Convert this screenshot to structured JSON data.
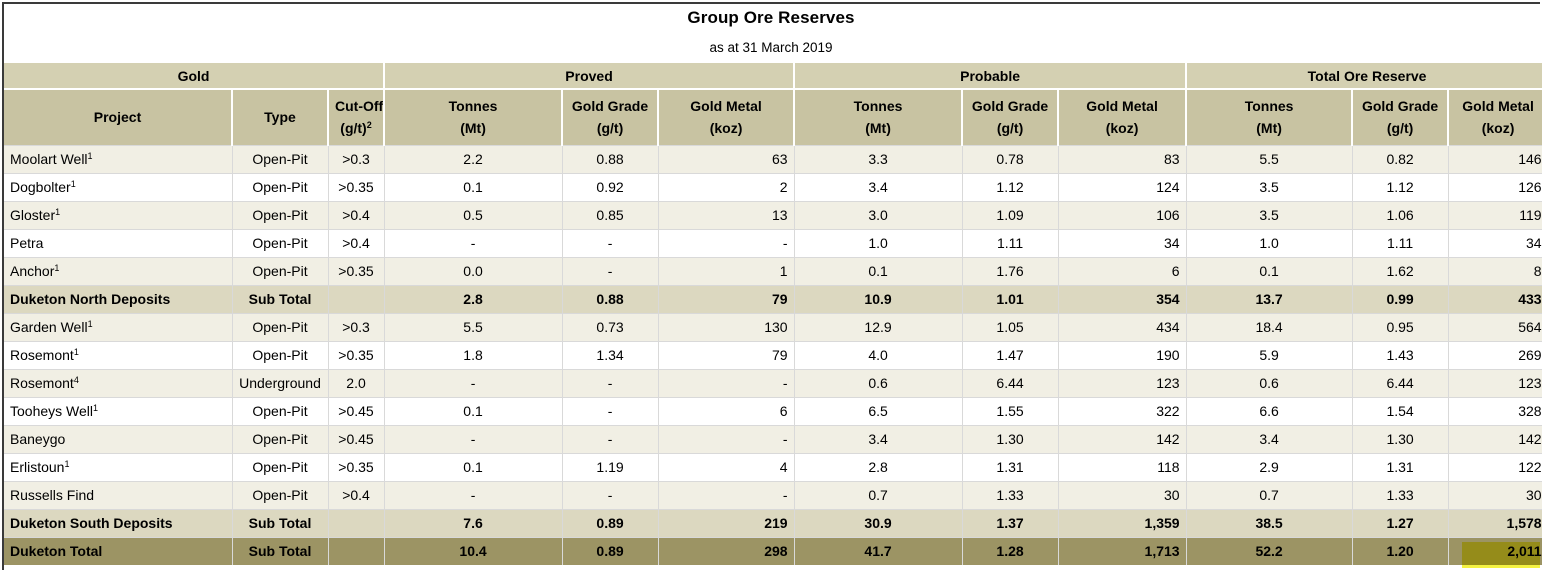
{
  "title": "Group Ore Reserves",
  "subtitle": "as at 31 March 2019",
  "groups": [
    "Gold",
    "Proved",
    "Probable",
    "Total Ore Reserve"
  ],
  "headers": {
    "project": "Project",
    "type": "Type",
    "cutoff_line1": "Cut-Off",
    "cutoff_line2": "(g/t)",
    "cutoff_sup": "2",
    "tonnes": [
      "Tonnes",
      "(Mt)"
    ],
    "grade": [
      "Gold Grade",
      "(g/t)"
    ],
    "metal": [
      "Gold Metal",
      "(koz)"
    ]
  },
  "rows": [
    {
      "kind": "data",
      "project": "Moolart Well",
      "sup": "1",
      "type": "Open-Pit",
      "cutoff": ">0.3",
      "p_t": "2.2",
      "p_g": "0.88",
      "p_m": "63",
      "pr_t": "3.3",
      "pr_g": "0.78",
      "pr_m": "83",
      "t_t": "5.5",
      "t_g": "0.82",
      "t_m": "146"
    },
    {
      "kind": "data",
      "project": "Dogbolter",
      "sup": "1",
      "type": "Open-Pit",
      "cutoff": ">0.35",
      "p_t": "0.1",
      "p_g": "0.92",
      "p_m": "2",
      "pr_t": "3.4",
      "pr_g": "1.12",
      "pr_m": "124",
      "t_t": "3.5",
      "t_g": "1.12",
      "t_m": "126"
    },
    {
      "kind": "data",
      "project": "Gloster",
      "sup": "1",
      "type": "Open-Pit",
      "cutoff": ">0.4",
      "p_t": "0.5",
      "p_g": "0.85",
      "p_m": "13",
      "pr_t": "3.0",
      "pr_g": "1.09",
      "pr_m": "106",
      "t_t": "3.5",
      "t_g": "1.06",
      "t_m": "119"
    },
    {
      "kind": "data",
      "project": "Petra",
      "sup": "",
      "type": "Open-Pit",
      "cutoff": ">0.4",
      "p_t": "-",
      "p_g": "-",
      "p_m": "-",
      "pr_t": "1.0",
      "pr_g": "1.11",
      "pr_m": "34",
      "t_t": "1.0",
      "t_g": "1.11",
      "t_m": "34"
    },
    {
      "kind": "data",
      "project": "Anchor",
      "sup": "1",
      "type": "Open-Pit",
      "cutoff": ">0.35",
      "p_t": "0.0",
      "p_g": "-",
      "p_m": "1",
      "pr_t": "0.1",
      "pr_g": "1.76",
      "pr_m": "6",
      "t_t": "0.1",
      "t_g": "1.62",
      "t_m": "8"
    },
    {
      "kind": "sub",
      "project": "Duketon North Deposits",
      "sup": "",
      "type": "Sub Total",
      "cutoff": "",
      "p_t": "2.8",
      "p_g": "0.88",
      "p_m": "79",
      "pr_t": "10.9",
      "pr_g": "1.01",
      "pr_m": "354",
      "t_t": "13.7",
      "t_g": "0.99",
      "t_m": "433"
    },
    {
      "kind": "data",
      "project": "Garden Well",
      "sup": "1",
      "type": "Open-Pit",
      "cutoff": ">0.3",
      "p_t": "5.5",
      "p_g": "0.73",
      "p_m": "130",
      "pr_t": "12.9",
      "pr_g": "1.05",
      "pr_m": "434",
      "t_t": "18.4",
      "t_g": "0.95",
      "t_m": "564"
    },
    {
      "kind": "data",
      "project": "Rosemont",
      "sup": "1",
      "type": "Open-Pit",
      "cutoff": ">0.35",
      "p_t": "1.8",
      "p_g": "1.34",
      "p_m": "79",
      "pr_t": "4.0",
      "pr_g": "1.47",
      "pr_m": "190",
      "t_t": "5.9",
      "t_g": "1.43",
      "t_m": "269"
    },
    {
      "kind": "data",
      "project": "Rosemont",
      "sup": "4",
      "type": "Underground",
      "cutoff": "2.0",
      "p_t": "-",
      "p_g": "-",
      "p_m": "-",
      "pr_t": "0.6",
      "pr_g": "6.44",
      "pr_m": "123",
      "t_t": "0.6",
      "t_g": "6.44",
      "t_m": "123"
    },
    {
      "kind": "data",
      "project": "Tooheys Well",
      "sup": "1",
      "type": "Open-Pit",
      "cutoff": ">0.45",
      "p_t": "0.1",
      "p_g": "-",
      "p_m": "6",
      "pr_t": "6.5",
      "pr_g": "1.55",
      "pr_m": "322",
      "t_t": "6.6",
      "t_g": "1.54",
      "t_m": "328"
    },
    {
      "kind": "data",
      "project": "Baneygo",
      "sup": "",
      "type": "Open-Pit",
      "cutoff": ">0.45",
      "p_t": "-",
      "p_g": "-",
      "p_m": "-",
      "pr_t": "3.4",
      "pr_g": "1.30",
      "pr_m": "142",
      "t_t": "3.4",
      "t_g": "1.30",
      "t_m": "142"
    },
    {
      "kind": "data",
      "project": "Erlistoun",
      "sup": "1",
      "type": "Open-Pit",
      "cutoff": ">0.35",
      "p_t": "0.1",
      "p_g": "1.19",
      "p_m": "4",
      "pr_t": "2.8",
      "pr_g": "1.31",
      "pr_m": "118",
      "t_t": "2.9",
      "t_g": "1.31",
      "t_m": "122"
    },
    {
      "kind": "data",
      "project": "Russells Find",
      "sup": "",
      "type": "Open-Pit",
      "cutoff": ">0.4",
      "p_t": "-",
      "p_g": "-",
      "p_m": "-",
      "pr_t": "0.7",
      "pr_g": "1.33",
      "pr_m": "30",
      "t_t": "0.7",
      "t_g": "1.33",
      "t_m": "30"
    },
    {
      "kind": "sub",
      "project": "Duketon South Deposits",
      "sup": "",
      "type": "Sub Total",
      "cutoff": "",
      "p_t": "7.6",
      "p_g": "0.89",
      "p_m": "219",
      "pr_t": "30.9",
      "pr_g": "1.37",
      "pr_m": "1,359",
      "t_t": "38.5",
      "t_g": "1.27",
      "t_m": "1,578"
    },
    {
      "kind": "total",
      "project": "Duketon Total",
      "sup": "",
      "type": "Sub Total",
      "cutoff": "",
      "p_t": "10.4",
      "p_g": "0.89",
      "p_m": "298",
      "pr_t": "41.7",
      "pr_g": "1.28",
      "pr_m": "1,713",
      "t_t": "52.2",
      "t_g": "1.20",
      "t_m": "2,011"
    }
  ],
  "colors": {
    "group_header": "#d4d0b2",
    "column_header": "#c8c3a2",
    "subtotal": "#dcd8c0",
    "total": "#9c9464",
    "highlight": "#f3f020"
  }
}
